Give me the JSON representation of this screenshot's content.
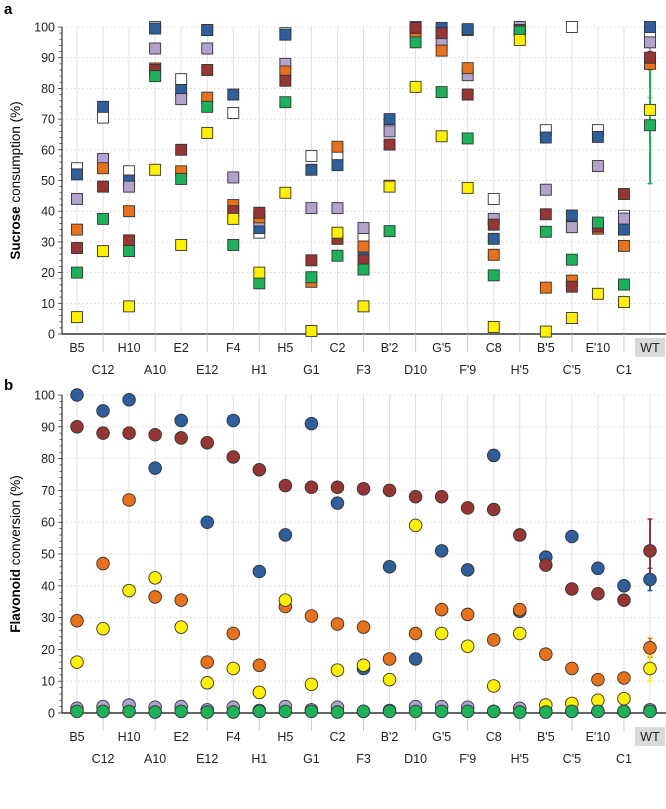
{
  "chart_data": [
    {
      "panel_label": "a",
      "type": "scatter",
      "marker": "square",
      "ylabel_bold": "Sucrose",
      "ylabel_rest": " consumption (%)",
      "ylim": [
        0,
        100
      ],
      "yticks": [
        0,
        10,
        20,
        30,
        40,
        50,
        60,
        70,
        80,
        90,
        100
      ],
      "grid": true,
      "categories": [
        "B5",
        "C12",
        "H10",
        "A10",
        "E2",
        "E12",
        "F4",
        "H1",
        "H5",
        "G1",
        "C2",
        "F3",
        "B'2",
        "D10",
        "G'5",
        "F'9",
        "C8",
        "H'5",
        "B'5",
        "C'5",
        "E'10",
        "C1",
        "WT"
      ],
      "highlight_category": "WT",
      "series": [
        {
          "name": "white",
          "color": "#ffffff",
          "values": [
            54,
            70.5,
            53,
            100,
            83,
            99,
            72,
            33,
            98,
            58,
            58,
            32,
            68.5,
            100,
            98.5,
            99,
            44,
            99.5,
            66.4,
            100,
            66.4,
            38.5,
            98.5
          ]
        },
        {
          "name": "blue",
          "color": "#2e5f9a",
          "values": [
            52,
            74,
            50,
            99.5,
            79.5,
            99,
            78,
            34.5,
            97.5,
            53.5,
            55,
            27,
            70,
            99.5,
            99.7,
            99.3,
            31,
            99,
            64,
            38.6,
            64.2,
            34,
            100
          ]
        },
        {
          "name": "lavender",
          "color": "#b3a2cc",
          "values": [
            44,
            57,
            48,
            93,
            76.5,
            93,
            51,
            37,
            88,
            41,
            41,
            34.5,
            66,
            99,
            95,
            84.3,
            37.5,
            100,
            47,
            34.8,
            54.7,
            37.6,
            95
          ],
          "wt_error": 18
        },
        {
          "name": "orange",
          "color": "#e8711c",
          "values": [
            34,
            54,
            40,
            86.5,
            53,
            77,
            42,
            38,
            85.5,
            17,
            61,
            28.5,
            48.3,
            98.5,
            92.3,
            86.6,
            25.8,
            99,
            15.1,
            17.4,
            34.3,
            28.7,
            88
          ],
          "wt_error": 2
        },
        {
          "name": "darkred",
          "color": "#963634",
          "values": [
            28,
            48,
            30.5,
            86,
            60,
            86,
            40,
            39.5,
            82.5,
            24,
            31,
            24,
            61.7,
            99.7,
            98,
            78,
            35.6,
            99,
            39,
            15.4,
            35,
            45.6,
            90
          ],
          "wt_error": 2
        },
        {
          "name": "green",
          "color": "#1db25a",
          "values": [
            20,
            37.5,
            27,
            84,
            50.5,
            74,
            29,
            16.5,
            75.5,
            18.5,
            25.5,
            21,
            33.5,
            95,
            78.8,
            63.7,
            19.1,
            98.5,
            33.3,
            24.2,
            36.3,
            16.1,
            68
          ],
          "wt_error": 19
        },
        {
          "name": "yellow",
          "color": "#ffef00",
          "values": [
            5.5,
            27,
            9,
            53.5,
            29,
            65.5,
            37.5,
            20,
            46,
            1,
            33,
            9,
            48,
            80.5,
            64.4,
            47.6,
            2.3,
            95.8,
            0.8,
            5.2,
            13.1,
            10.4,
            73
          ]
        }
      ]
    },
    {
      "panel_label": "b",
      "type": "scatter",
      "marker": "circle",
      "ylabel_bold": "Flavonoid",
      "ylabel_rest": " conversion (%)",
      "ylim": [
        0,
        100
      ],
      "yticks": [
        0,
        10,
        20,
        30,
        40,
        50,
        60,
        70,
        80,
        90,
        100
      ],
      "grid": true,
      "categories": [
        "B5",
        "C12",
        "H10",
        "A10",
        "E2",
        "E12",
        "F4",
        "H1",
        "H5",
        "G1",
        "C2",
        "F3",
        "B'2",
        "D10",
        "G'5",
        "F'9",
        "C8",
        "H'5",
        "B'5",
        "C'5",
        "E'10",
        "C1",
        "WT"
      ],
      "highlight_category": "WT",
      "series": [
        {
          "name": "lavender",
          "color": "#b3a2cc",
          "values": [
            1.5,
            2,
            2.5,
            1.8,
            2,
            1,
            1.8,
            0.8,
            2,
            1,
            1.8,
            0.5,
            0.8,
            2,
            2,
            1.8,
            0.5,
            1.5,
            0.5,
            0.5,
            0.5,
            0.5,
            1
          ]
        },
        {
          "name": "blue",
          "color": "#2e5f9a",
          "values": [
            100,
            95,
            98.5,
            77,
            92,
            60,
            92,
            44.5,
            56,
            91,
            66,
            14,
            46,
            17,
            51,
            45,
            81,
            32,
            49,
            55.5,
            45.5,
            40,
            42
          ],
          "wt_error": 3.5
        },
        {
          "name": "darkred",
          "color": "#963634",
          "values": [
            90,
            88,
            88,
            87.5,
            86.5,
            85,
            80.5,
            76.5,
            71.5,
            71,
            71,
            70.5,
            70,
            68,
            68,
            64.5,
            64,
            56,
            46.5,
            39,
            37.5,
            35.5,
            51
          ],
          "wt_error": 10
        },
        {
          "name": "orange",
          "color": "#e8711c",
          "values": [
            29,
            47,
            67,
            36.5,
            35.5,
            16,
            25,
            15,
            33.5,
            30.5,
            28,
            27,
            17,
            25,
            32.5,
            31,
            23,
            32.5,
            18.5,
            14,
            10.5,
            11,
            20.5
          ],
          "wt_error": 3
        },
        {
          "name": "yellow",
          "color": "#ffef00",
          "values": [
            16,
            26.5,
            38.5,
            42.5,
            27,
            9.5,
            14,
            6.5,
            35.5,
            9,
            13.5,
            15,
            10.5,
            59,
            25,
            21,
            8.5,
            25,
            2.5,
            3,
            4,
            4.5,
            14
          ],
          "wt_error": 4
        },
        {
          "name": "green",
          "color": "#1db25a",
          "values": [
            0.5,
            0.5,
            0.5,
            0.3,
            0.5,
            0.3,
            0.3,
            0.5,
            0.5,
            0.5,
            0.3,
            0.5,
            0.5,
            0.5,
            0.5,
            0.5,
            0.5,
            0.3,
            0.3,
            0.5,
            0.5,
            0.5,
            0.5
          ]
        }
      ]
    }
  ]
}
